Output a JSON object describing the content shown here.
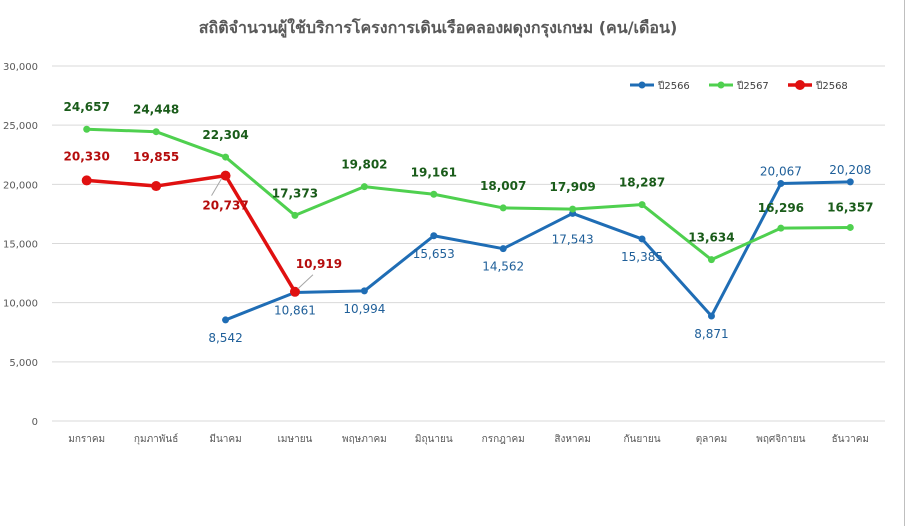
{
  "chart_data": {
    "type": "line",
    "title": "สถิติจำนวนผู้ใช้บริการโครงการเดินเรือคลองผดุงกรุงเกษม (คน/เดือน)",
    "xlabel": "",
    "ylabel": "",
    "categories": [
      "มกราคม",
      "กุมภาพันธ์",
      "มีนาคม",
      "เมษายน",
      "พฤษภาคม",
      "มิถุนายน",
      "กรกฎาคม",
      "สิงหาคม",
      "กันยายน",
      "ตุลาคม",
      "พฤศจิกายน",
      "ธันวาคม"
    ],
    "ylim": [
      0,
      30000
    ],
    "yticks": [
      0,
      5000,
      10000,
      15000,
      20000,
      25000,
      30000
    ],
    "ytick_labels": [
      "0",
      "5,000",
      "10,000",
      "15,000",
      "20,000",
      "25,000",
      "30,000"
    ],
    "grid": true,
    "legend_position": "top-right",
    "series": [
      {
        "name": "ปี2566",
        "color": "#1f6db5",
        "label_color": "#1f5f99",
        "values": [
          null,
          null,
          8542,
          10861,
          10994,
          15653,
          14562,
          17543,
          15385,
          8871,
          20067,
          20208
        ],
        "labels": [
          null,
          null,
          "8,542",
          "10,861",
          "10,994",
          "15,653",
          "14,562",
          "17,543",
          "15,385",
          "8,871",
          "20,067",
          "20,208"
        ]
      },
      {
        "name": "ปี2567",
        "color": "#4fd04f",
        "label_color": "#1a5c1a",
        "values": [
          24657,
          24448,
          22304,
          17373,
          19802,
          19161,
          18007,
          17909,
          18287,
          13634,
          16296,
          16357
        ],
        "labels": [
          "24,657",
          "24,448",
          "22,304",
          "17,373",
          "19,802",
          "19,161",
          "18,007",
          "17,909",
          "18,287",
          "13,634",
          "16,296",
          "16,357"
        ]
      },
      {
        "name": "ปี2568",
        "color": "#e01010",
        "label_color": "#b50d0d",
        "values": [
          20330,
          19855,
          20737,
          10919,
          null,
          null,
          null,
          null,
          null,
          null,
          null,
          null
        ],
        "labels": [
          "20,330",
          "19,855",
          "20,737",
          "10,919",
          null,
          null,
          null,
          null,
          null,
          null,
          null,
          null
        ]
      }
    ]
  }
}
